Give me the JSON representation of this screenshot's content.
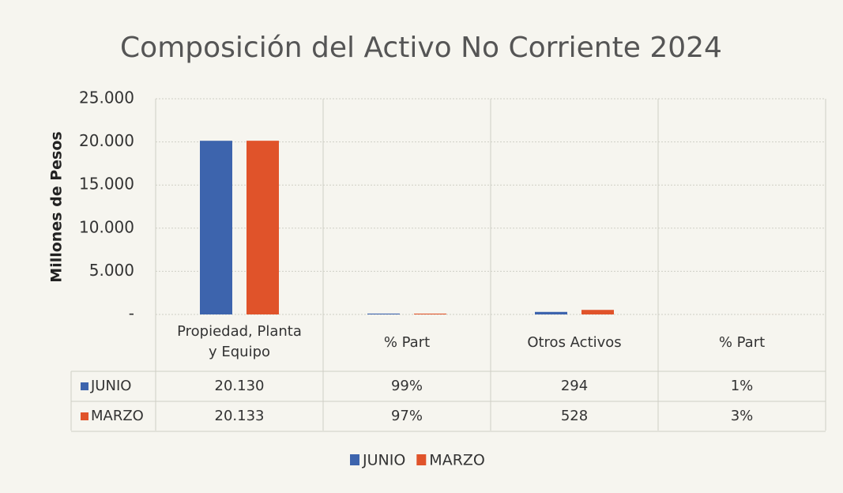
{
  "chart_data": {
    "type": "bar",
    "title": "Composición del Activo No Corriente 2024",
    "y_label": "Millones de Pesos",
    "categories": [
      "Propiedad, Planta y Equipo",
      "% Part",
      "Otros Activos",
      "% Part"
    ],
    "series": [
      {
        "name": "JUNIO",
        "color": "#3d64ad",
        "values": [
          20130,
          99,
          294,
          1
        ],
        "value_labels": [
          "20.130",
          "99%",
          "294",
          "1%"
        ]
      },
      {
        "name": "MARZO",
        "color": "#e0532a",
        "values": [
          20133,
          97,
          528,
          3
        ],
        "value_labels": [
          "20.133",
          "97%",
          "528",
          "3%"
        ]
      }
    ],
    "ylim": [
      0,
      25000
    ],
    "yticks": [
      {
        "value": 0,
        "label": "-"
      },
      {
        "value": 5000,
        "label": "5.000"
      },
      {
        "value": 10000,
        "label": "10.000"
      },
      {
        "value": 15000,
        "label": "15.000"
      },
      {
        "value": 20000,
        "label": "20.000"
      },
      {
        "value": 25000,
        "label": "25.000"
      }
    ],
    "grid": true,
    "legend": "bottom",
    "data_table": true
  }
}
